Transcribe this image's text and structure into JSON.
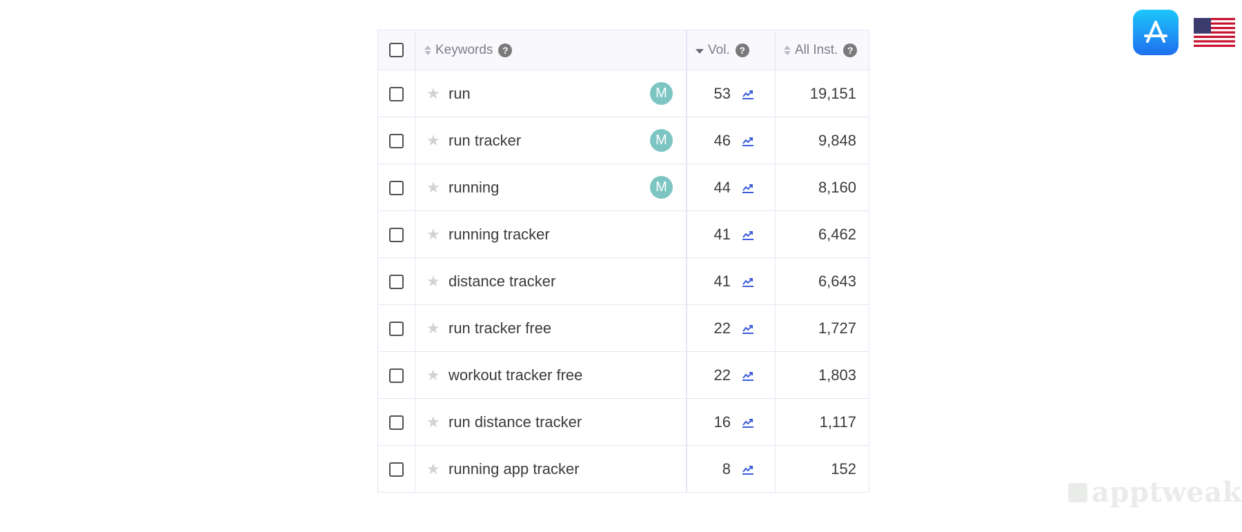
{
  "table": {
    "headers": {
      "keywords": "Keywords",
      "volume": "Vol.",
      "installs": "All Inst.",
      "help_glyph": "?"
    },
    "rows": [
      {
        "keyword": "run",
        "badge": "M",
        "volume": "53",
        "installs": "19,151"
      },
      {
        "keyword": "run tracker",
        "badge": "M",
        "volume": "46",
        "installs": "9,848"
      },
      {
        "keyword": "running",
        "badge": "M",
        "volume": "44",
        "installs": "8,160"
      },
      {
        "keyword": "running tracker",
        "badge": "",
        "volume": "41",
        "installs": "6,462"
      },
      {
        "keyword": "distance tracker",
        "badge": "",
        "volume": "41",
        "installs": "6,643"
      },
      {
        "keyword": "run tracker free",
        "badge": "",
        "volume": "22",
        "installs": "1,727"
      },
      {
        "keyword": "workout tracker free",
        "badge": "",
        "volume": "22",
        "installs": "1,803"
      },
      {
        "keyword": "run distance tracker",
        "badge": "",
        "volume": "16",
        "installs": "1,117"
      },
      {
        "keyword": "running app tracker",
        "badge": "",
        "volume": "8",
        "installs": "152"
      }
    ]
  },
  "store": {
    "icon": "app-store-icon",
    "country_icon": "us-flag-icon"
  },
  "watermark": {
    "text": "apptweak"
  },
  "colors": {
    "badge": "#7cc5c2",
    "trend": "#3b5bdb",
    "app_store": "#1f8ef2"
  }
}
